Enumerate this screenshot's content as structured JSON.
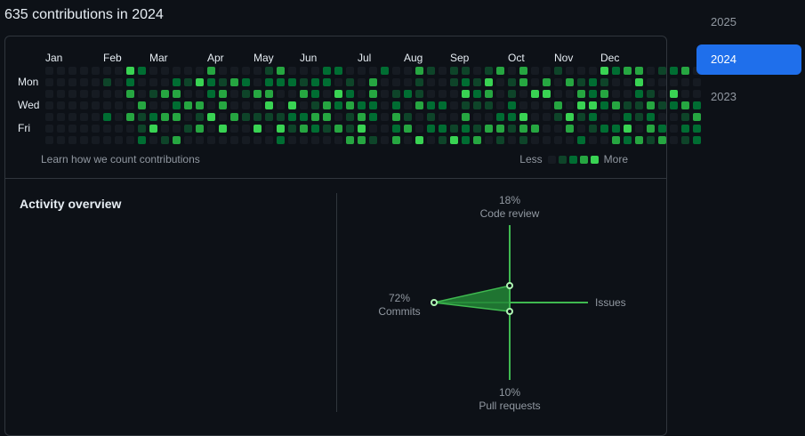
{
  "header": {
    "title": "635 contributions in 2024"
  },
  "calendar": {
    "months": [
      "Jan",
      "Feb",
      "Mar",
      "Apr",
      "May",
      "Jun",
      "Jul",
      "Aug",
      "Sep",
      "Oct",
      "Nov",
      "Dec"
    ],
    "days": [
      "Mon",
      "Wed",
      "Fri"
    ],
    "learn_link": "Learn how we count contributions",
    "legend_less": "Less",
    "legend_more": "More",
    "weeks": 57,
    "levels": [
      "#161b22",
      "#0e4429",
      "#006d32",
      "#26a641",
      "#39d353"
    ]
  },
  "activity": {
    "title": "Activity overview",
    "code_review": {
      "pct": "18%",
      "label": "Code review"
    },
    "commits": {
      "pct": "72%",
      "label": "Commits"
    },
    "issues": {
      "label": "Issues"
    },
    "pull_requests": {
      "pct": "10%",
      "label": "Pull requests"
    }
  },
  "years": {
    "items": [
      "2025",
      "2024",
      "2023"
    ],
    "selected": "2024"
  },
  "colors": {
    "accent": "#1f6feb",
    "graph_line": "#3fb950",
    "graph_fill": "#238636"
  }
}
